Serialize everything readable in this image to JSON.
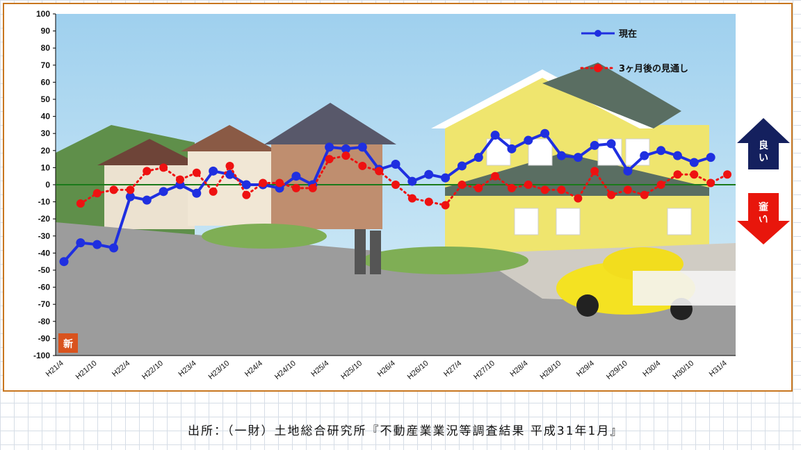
{
  "chart_data": {
    "type": "line",
    "x": [
      "H21/4",
      "H21/7",
      "H21/10",
      "H22/1",
      "H22/4",
      "H22/7",
      "H22/10",
      "H23/1",
      "H23/4",
      "H23/7",
      "H23/10",
      "H24/1",
      "H24/4",
      "H24/7",
      "H24/10",
      "H25/1",
      "H25/4",
      "H25/7",
      "H25/10",
      "H26/1",
      "H26/4",
      "H26/7",
      "H26/10",
      "H27/1",
      "H27/4",
      "H27/7",
      "H27/10",
      "H28/1",
      "H28/4",
      "H28/7",
      "H28/10",
      "H29/1",
      "H29/4",
      "H29/7",
      "H29/10",
      "H30/1",
      "H30/4",
      "H30/7",
      "H30/10",
      "H31/1",
      "H31/4"
    ],
    "tick_labels": [
      "H21/4",
      "H21/10",
      "H22/4",
      "H22/10",
      "H23/4",
      "H23/10",
      "H24/4",
      "H24/10",
      "H25/4",
      "H25/10",
      "H26/4",
      "H26/10",
      "H27/4",
      "H27/10",
      "H28/4",
      "H28/10",
      "H29/4",
      "H29/10",
      "H30/4",
      "H30/10",
      "H31/4"
    ],
    "series": [
      {
        "name": "現在",
        "color": "#1f2fe0",
        "style": "solid",
        "values": [
          -45,
          -34,
          -35,
          -37,
          -7,
          -9,
          -4,
          0,
          -5,
          8,
          6,
          0,
          0,
          -2,
          5,
          0,
          22,
          21,
          22,
          9,
          12,
          2,
          6,
          4,
          11,
          16,
          29,
          21,
          26,
          30,
          17,
          16,
          23,
          24,
          8,
          17,
          20,
          17,
          13,
          16,
          null
        ]
      },
      {
        "name": "3ヶ月後の見通し",
        "color": "#ee1111",
        "style": "dotted",
        "values": [
          null,
          -11,
          -5,
          -3,
          -3,
          8,
          10,
          3,
          7,
          -4,
          11,
          -6,
          1,
          1,
          -2,
          -2,
          15,
          17,
          11,
          8,
          0,
          -8,
          -10,
          -12,
          0,
          -2,
          5,
          -2,
          0,
          -3,
          -3,
          -8,
          8,
          -6,
          -3,
          -6,
          0,
          6,
          6,
          1,
          6
        ]
      }
    ],
    "ylim": [
      -100,
      100
    ],
    "yticks": [
      100,
      90,
      80,
      70,
      60,
      50,
      40,
      30,
      20,
      10,
      0,
      -10,
      -20,
      -30,
      -40,
      -50,
      -60,
      -70,
      -80,
      -90,
      -100
    ],
    "legend_position": "top-right",
    "annotations": {
      "good": "良い",
      "bad": "悪い",
      "new_badge": "新"
    },
    "source": "出所：（一財）土地総合研究所『不動産業業況等調査結果 平成31年1月』"
  },
  "colors": {
    "frame": "#c8761f",
    "zero_line": "#1a7a1a",
    "good_arrow": "#14205e",
    "bad_arrow": "#e8160c"
  }
}
